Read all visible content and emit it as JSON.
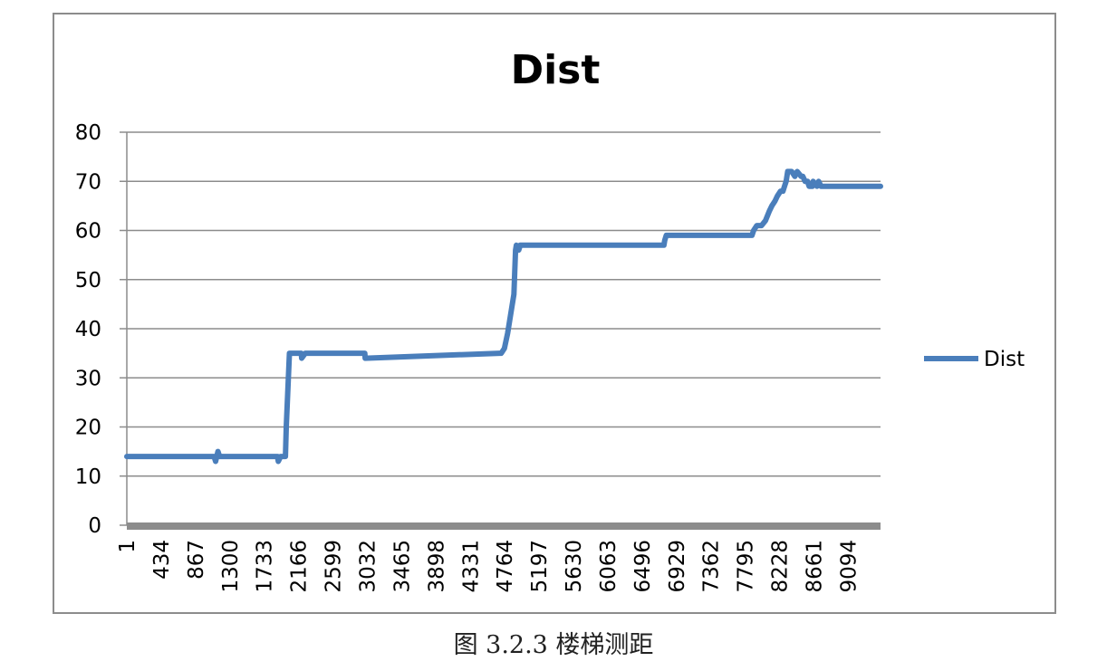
{
  "chart_data": {
    "type": "line",
    "title": "Dist",
    "xlabel": "",
    "ylabel": "",
    "ylim": [
      0,
      80
    ],
    "yticks": [
      0,
      10,
      20,
      30,
      40,
      50,
      60,
      70,
      80
    ],
    "xlim": [
      1,
      9500
    ],
    "x_tick_labels": [
      "1",
      "434",
      "867",
      "1300",
      "1733",
      "2166",
      "2599",
      "3032",
      "3465",
      "3898",
      "4331",
      "4764",
      "5197",
      "5630",
      "6063",
      "6496",
      "6929",
      "7362",
      "7795",
      "8228",
      "8661",
      "9094"
    ],
    "x_tick_values": [
      1,
      434,
      867,
      1300,
      1733,
      2166,
      2599,
      3032,
      3465,
      3898,
      4331,
      4764,
      5197,
      5630,
      6063,
      6496,
      6929,
      7362,
      7795,
      8228,
      8661,
      9094
    ],
    "grid": "horizontal",
    "legend": "right",
    "series": [
      {
        "name": "Dist",
        "color": "#4a7ebb",
        "x": [
          1,
          1100,
          1120,
          1150,
          1170,
          1200,
          1900,
          1910,
          1940,
          2000,
          2010,
          2050,
          2200,
          2205,
          2250,
          3000,
          3005,
          4700,
          4720,
          4760,
          4800,
          4840,
          4880,
          4900,
          4910,
          4940,
          4960,
          6770,
          6780,
          6800,
          6830,
          6860,
          6900,
          7870,
          7880,
          7900,
          7940,
          8000,
          8050,
          8100,
          8130,
          8170,
          8200,
          8240,
          8270,
          8290,
          8310,
          8330,
          8380,
          8420,
          8450,
          8500,
          8520,
          8550,
          8580,
          8600,
          8640,
          8650,
          8700,
          8720,
          8750,
          9500
        ],
        "y": [
          14,
          14,
          13,
          15,
          14,
          14,
          14,
          13,
          14,
          14,
          20,
          35,
          35,
          34,
          35,
          35,
          34,
          35,
          35,
          36,
          39,
          43,
          47,
          56,
          57,
          56,
          57,
          57,
          58,
          59,
          59,
          59,
          59,
          59,
          59,
          60,
          61,
          61,
          62,
          64,
          65,
          66,
          67,
          68,
          68,
          69,
          70,
          72,
          72,
          71,
          72,
          71,
          71,
          70,
          70,
          69,
          69,
          70,
          69,
          70,
          69,
          69
        ]
      }
    ]
  },
  "caption": "图 3.2.3  楼梯测距"
}
